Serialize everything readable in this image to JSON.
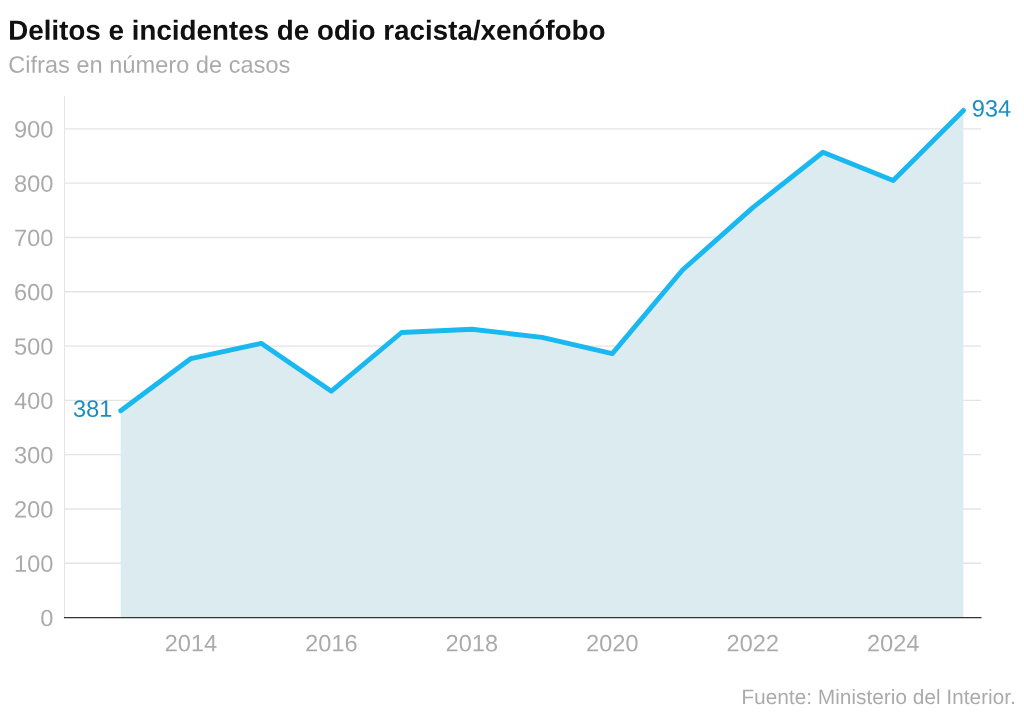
{
  "chart_data": {
    "type": "area",
    "title": "Delitos e incidentes de odio racista/xenófobo",
    "subtitle": "Cifras en número de casos",
    "x": [
      2013,
      2014,
      2015,
      2016,
      2017,
      2018,
      2019,
      2020,
      2021,
      2022,
      2023,
      2024,
      2025
    ],
    "series": [
      {
        "color": "#1ab8f0",
        "values": [
          381,
          477,
          505,
          417,
          525,
          531,
          516,
          486,
          640,
          755,
          857,
          805,
          934
        ],
        "value_labels": [
          "381",
          null,
          null,
          null,
          null,
          null,
          null,
          null,
          null,
          null,
          null,
          null,
          "934"
        ]
      }
    ],
    "xlim": [
      2012.2,
      2025.25
    ],
    "xticks": [
      2014,
      2016,
      2018,
      2020,
      2022,
      2024
    ],
    "ylim": [
      0,
      960
    ],
    "yticks": [
      0,
      100,
      200,
      300,
      400,
      500,
      600,
      700,
      800,
      900
    ],
    "grid": "y",
    "marker": "none",
    "line_style": "solid",
    "annotations": [
      "Fuente: Ministerio del Interior."
    ]
  }
}
